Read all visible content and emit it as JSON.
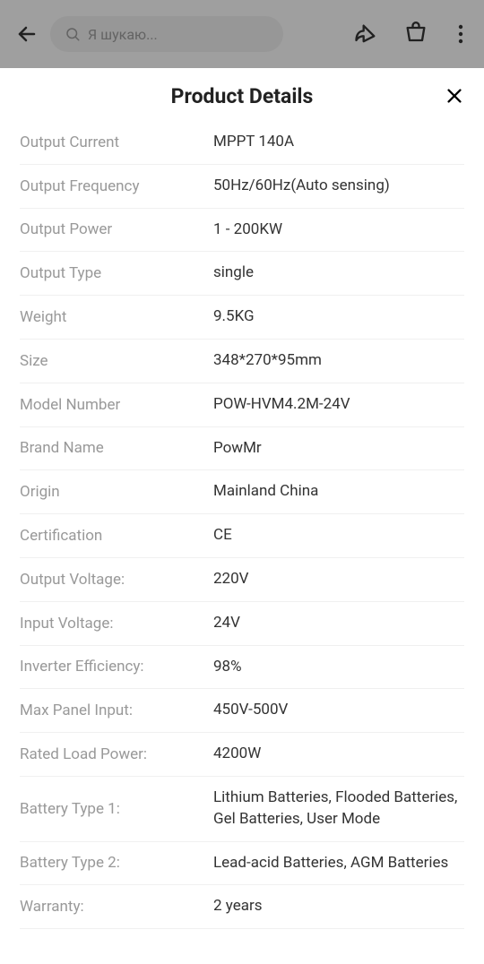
{
  "header": {
    "search_placeholder": "Я шукаю..."
  },
  "sheet": {
    "title": "Product Details"
  },
  "details": [
    {
      "label": "Output Current",
      "value": "MPPT 140A"
    },
    {
      "label": "Output Frequency",
      "value": "50Hz/60Hz(Auto sensing)"
    },
    {
      "label": "Output Power",
      "value": "1 - 200KW"
    },
    {
      "label": "Output Type",
      "value": "single"
    },
    {
      "label": "Weight",
      "value": "9.5KG"
    },
    {
      "label": "Size",
      "value": "348*270*95mm"
    },
    {
      "label": "Model Number",
      "value": "POW-HVM4.2M-24V"
    },
    {
      "label": "Brand Name",
      "value": "PowMr"
    },
    {
      "label": "Origin",
      "value": "Mainland China"
    },
    {
      "label": "Certification",
      "value": "CE"
    },
    {
      "label": "Output Voltage:",
      "value": "220V"
    },
    {
      "label": "Input Voltage:",
      "value": "24V"
    },
    {
      "label": "Inverter Efficiency:",
      "value": "98%"
    },
    {
      "label": "Max Panel Input:",
      "value": "450V-500V"
    },
    {
      "label": "Rated Load Power:",
      "value": "4200W"
    },
    {
      "label": "Battery Type 1:",
      "value": "Lithium Batteries, Flooded Batteries, Gel Batteries, User Mode"
    },
    {
      "label": "Battery Type 2:",
      "value": "Lead-acid Batteries, AGM Batteries"
    },
    {
      "label": "Warranty:",
      "value": "2 years"
    }
  ],
  "colors": {
    "label_color": "#999999",
    "value_color": "#333333",
    "divider_color": "#f0f0f0",
    "backdrop_bg": "#f5f5f5",
    "backdrop_dim": "rgba(0,0,0,0.35)"
  }
}
